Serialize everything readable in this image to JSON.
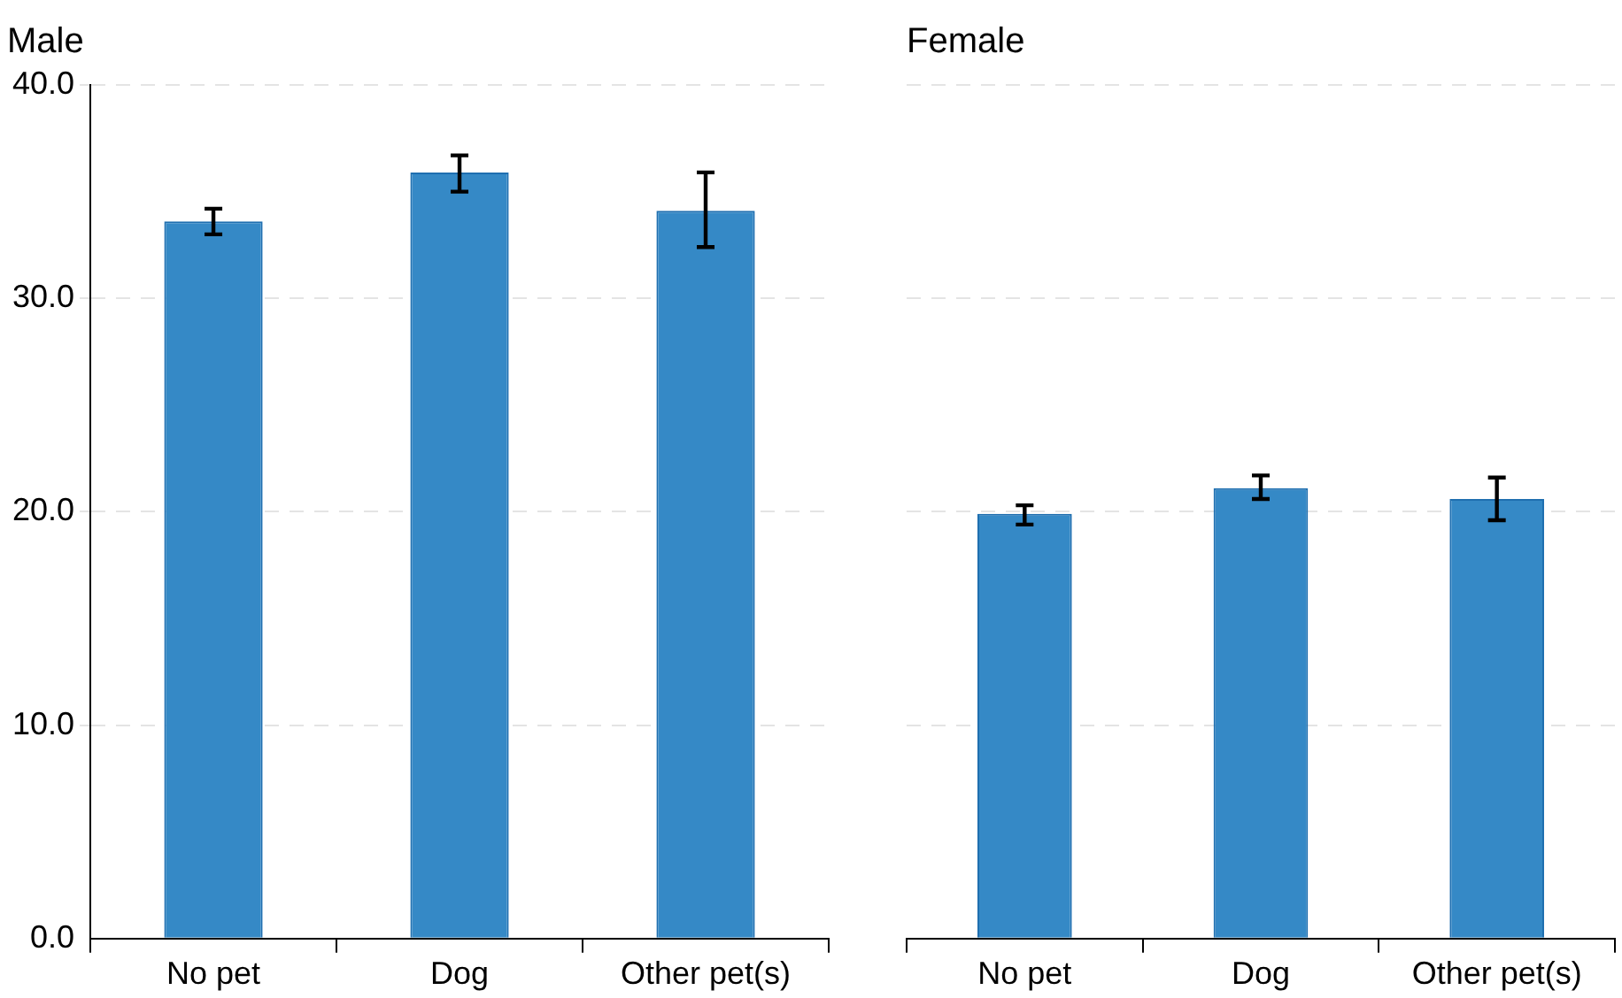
{
  "chart_data": [
    {
      "type": "bar",
      "title": "Male",
      "categories": [
        "No pet",
        "Dog",
        "Other pet(s)"
      ],
      "values": [
        33.6,
        35.9,
        34.1
      ],
      "color": "#3589c6",
      "errors": [
        [
          33.0,
          34.2
        ],
        [
          35.0,
          36.7
        ],
        [
          32.4,
          35.9
        ]
      ],
      "ylim": [
        0,
        40
      ],
      "yticks": [
        {
          "value": 0,
          "label": "0.0"
        },
        {
          "value": 10,
          "label": "10.0"
        },
        {
          "value": 20,
          "label": "20.0"
        },
        {
          "value": 30,
          "label": "30.0"
        },
        {
          "value": 40,
          "label": "40.0"
        }
      ],
      "grid": "y",
      "legend": false
    },
    {
      "type": "bar",
      "title": "Female",
      "categories": [
        "No pet",
        "Dog",
        "Other pet(s)"
      ],
      "values": [
        19.9,
        21.1,
        20.6
      ],
      "color": "#3589c6",
      "errors": [
        [
          19.4,
          20.3
        ],
        [
          20.6,
          21.7
        ],
        [
          19.6,
          21.6
        ]
      ],
      "ylim": [
        0,
        40
      ],
      "yticks": [
        0,
        10,
        20,
        30,
        40
      ],
      "grid": "y",
      "legend": false,
      "tick_labels": "x"
    }
  ]
}
